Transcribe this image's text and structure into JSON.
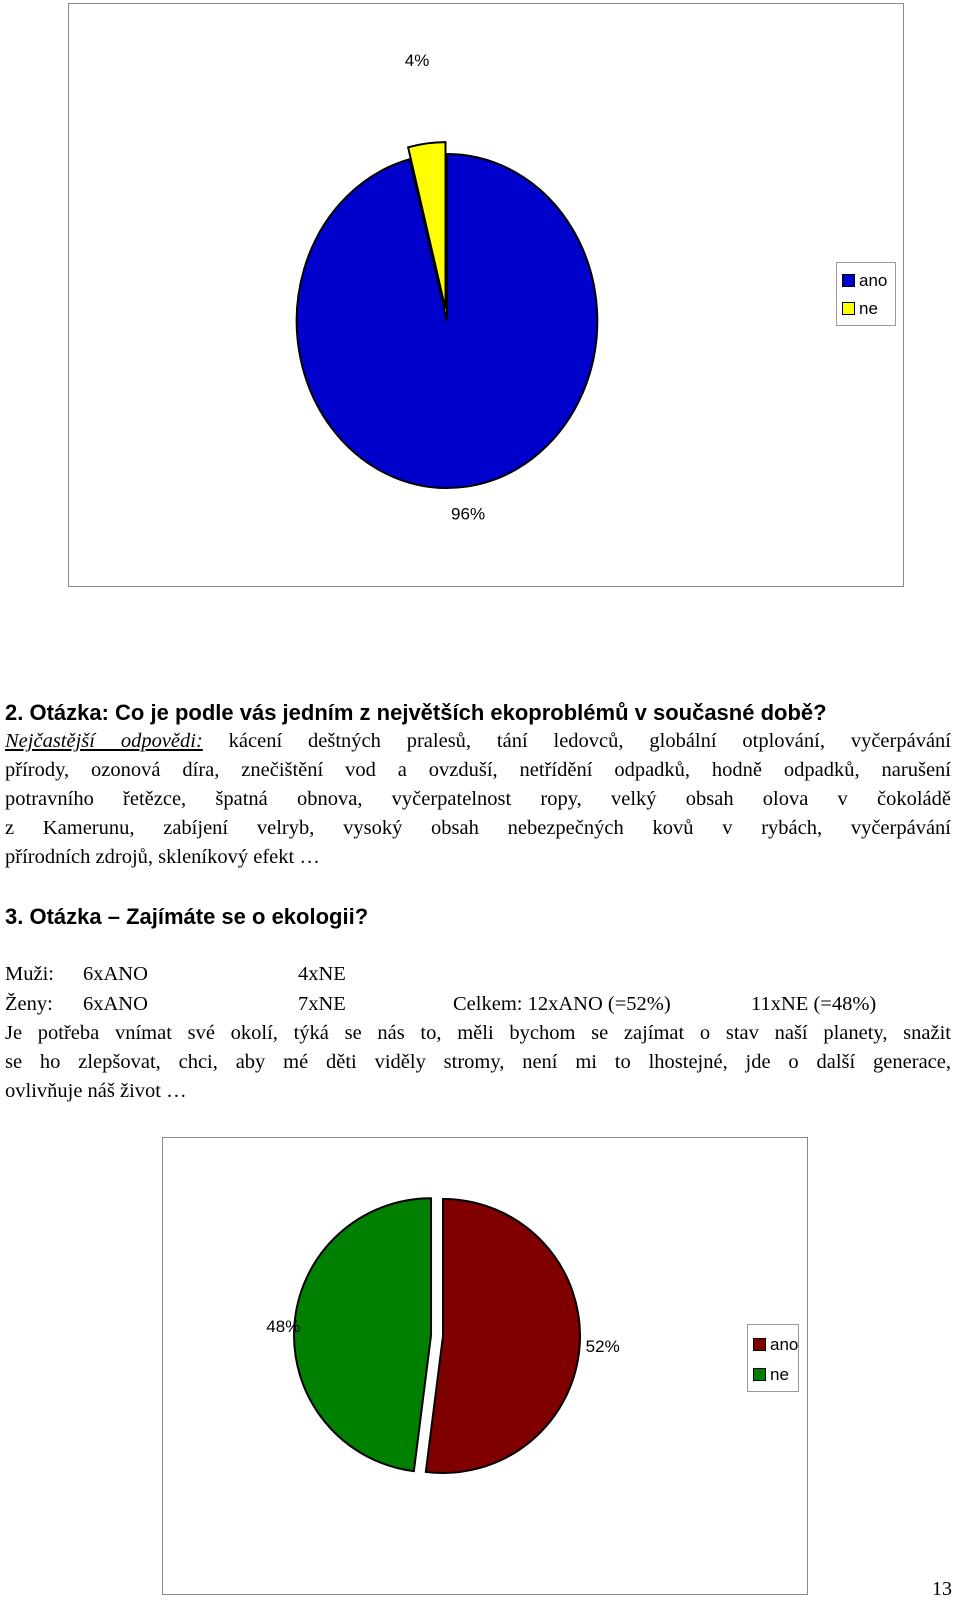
{
  "charts": {
    "chart1": {
      "legend": [
        {
          "label": "ano",
          "color": "#0000cc"
        },
        {
          "label": "ne",
          "color": "#ffff00"
        }
      ]
    },
    "chart2": {
      "legend": [
        {
          "label": "ano",
          "color": "#800000"
        },
        {
          "label": "ne",
          "color": "#008000"
        }
      ]
    }
  },
  "chart_data": [
    {
      "type": "pie",
      "categories": [
        "ano",
        "ne"
      ],
      "values": [
        96,
        4
      ],
      "labels": [
        "96%",
        "4%"
      ],
      "colors": [
        "#0000cc",
        "#ffff00"
      ],
      "exploded": "ne",
      "legend_position": "right"
    },
    {
      "type": "pie",
      "categories": [
        "ano",
        "ne"
      ],
      "values": [
        52,
        48
      ],
      "labels": [
        "52%",
        "48%"
      ],
      "colors": [
        "#800000",
        "#008000"
      ],
      "exploded": "ne",
      "legend_position": "right"
    }
  ],
  "question2": {
    "heading": "2. Otázka: Co je podle vás jedním z největších ekoproblémů v současné době?",
    "intro": "Nejčastější odpovědi:",
    "line1_rest": " kácení deštných pralesů, tání ledovců, globální otplování, vyčerpávání",
    "line2": "přírody, ozonová díra, znečištění vod a ovzduší, netřídění odpadků, hodně odpadků, narušení",
    "line3": "potravního řetězce, špatná obnova, vyčerpatelnost ropy, velký obsah olova v čokoládě",
    "line4": "z Kamerunu, zabíjení velryb, vysoký obsah nebezpečných kovů v rybách, vyčerpávání",
    "line5": "přírodních zdrojů, skleníkový efekt …"
  },
  "question3": {
    "heading": "3. Otázka – Zajímáte se o ekologii?",
    "men_label": "Muži:",
    "men_yes": "6xANO",
    "men_no": "4xNE",
    "women_label": "Ženy:",
    "women_yes": "6xANO",
    "women_no": "7xNE",
    "total": "Celkem: 12xANO (=52%)",
    "total_no": "11xNE (=48%)",
    "line1": "Je potřeba vnímat své okolí, týká se nás to, měli bychom se zajímat o stav naší planety, snažit",
    "line2": "se ho zlepšovat, chci, aby mé děti viděly stromy, není mi to lhostejné, jde o další generace,",
    "line3": "ovlivňuje náš život …"
  },
  "page_number": "13"
}
